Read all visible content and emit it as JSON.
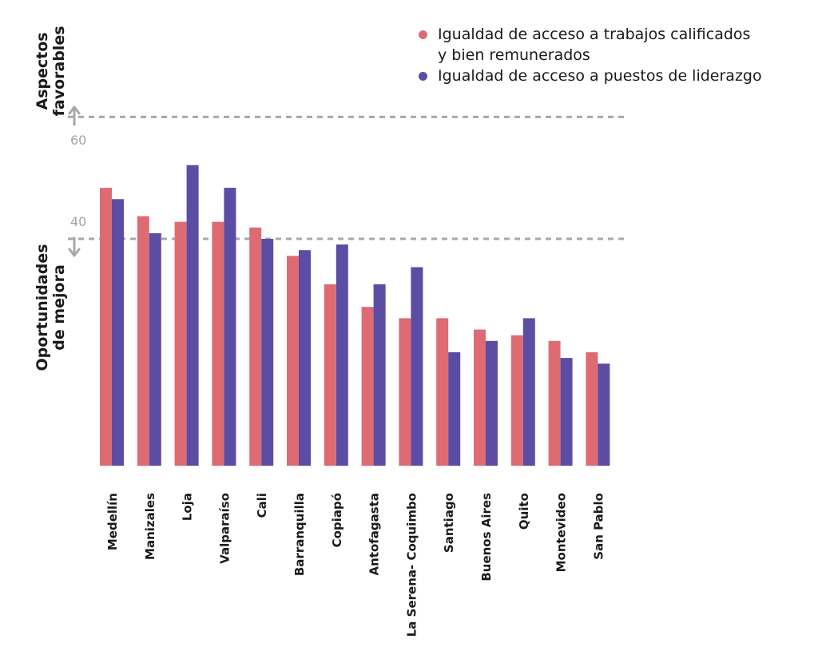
{
  "chart_data": {
    "type": "bar",
    "categories": [
      "Medellín",
      "Manizales",
      "Loja",
      "Valparaíso",
      "Cali",
      "Barranquilla",
      "Copiapó",
      "Antofagasta",
      "La Serena- Coquimbo",
      "Santiago",
      "Buenos Aires",
      "Quito",
      "Montevideo",
      "San Pablo"
    ],
    "series": [
      {
        "name": "Igualdad de acceso a trabajos calificados y bien remunerados",
        "name_lines": [
          "Igualdad de acceso a trabajos calificados",
          "y bien remunerados"
        ],
        "color": "#de6b74",
        "values": [
          49,
          44,
          43,
          43,
          42,
          37,
          32,
          28,
          26,
          26,
          24,
          23,
          22,
          20
        ]
      },
      {
        "name": "Igualdad de acceso a puestos de liderazgo",
        "name_lines": [
          "Igualdad de acceso a puestos de liderazgo"
        ],
        "color": "#5b4da3",
        "values": [
          47,
          41,
          53,
          49,
          40,
          38,
          39,
          32,
          35,
          20,
          22,
          26,
          19,
          18
        ]
      }
    ],
    "yticks": [
      "60",
      "40"
    ],
    "ylim": [
      0,
      60
    ],
    "reference_lines": [
      {
        "value": 61.5,
        "label_top": "Aspectos favorables"
      },
      {
        "value": 40,
        "label_bottom": "Oportunidades de mejora"
      }
    ],
    "annotation_top_lines": [
      "Aspectos",
      "favorables"
    ],
    "annotation_bottom_lines": [
      "Oportunidades",
      "de mejora"
    ],
    "grid": false,
    "legend_position": "top-right",
    "axis_color": "#a8a8a8"
  }
}
